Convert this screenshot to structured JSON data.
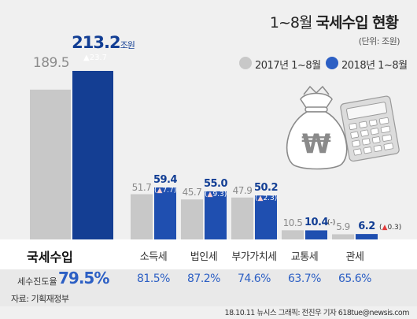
{
  "title_plain": "1~8월 ",
  "title_bold": "국세수입 현황",
  "unit": "(단위: 조원)",
  "legend": [
    {
      "label": "2017년 1~8월",
      "color": "#c8c8c8"
    },
    {
      "label": "2018년 1~8월",
      "color": "#2c5fc4"
    }
  ],
  "total": {
    "label": "국세수입",
    "v2017": "189.5",
    "v2018": "213.2",
    "v2018_unit": "조원",
    "delta": "▲23.7",
    "ratio_label": "세수진도율",
    "ratio": "79.5%"
  },
  "chart_data": {
    "type": "bar",
    "title": "1~8월 국세수입 현황",
    "unit": "조원",
    "categories": [
      "국세수입",
      "소득세",
      "법인세",
      "부가가치세",
      "교통세",
      "관세"
    ],
    "series": [
      {
        "name": "2017년 1~8월",
        "values": [
          189.5,
          51.7,
          45.7,
          47.9,
          10.5,
          5.9
        ]
      },
      {
        "name": "2018년 1~8월",
        "values": [
          213.2,
          59.4,
          55.0,
          50.2,
          10.4,
          6.2
        ]
      }
    ],
    "change": [
      "▲23.7",
      "▲7.7",
      "▲9.3",
      "▲2.3",
      "-",
      "▲0.3"
    ],
    "ratio": [
      "79.5%",
      "81.5%",
      "87.2%",
      "74.6%",
      "63.7%",
      "65.6%"
    ]
  },
  "taxes": [
    {
      "label": "소득세",
      "v2017": "51.7",
      "v2018": "59.4",
      "delta_sym": "▲",
      "delta_val": "7.7",
      "ratio": "81.5%"
    },
    {
      "label": "법인세",
      "v2017": "45.7",
      "v2018": "55.0",
      "delta_sym": "▲",
      "delta_val": "9.3",
      "ratio": "87.2%"
    },
    {
      "label": "부가가치세",
      "v2017": "47.9",
      "v2018": "50.2",
      "delta_sym": "▲",
      "delta_val": "2.3",
      "ratio": "74.6%"
    },
    {
      "label": "교통세",
      "v2017": "10.5",
      "v2018": "10.4",
      "delta_sym": "",
      "delta_val": "-",
      "ratio": "63.7%"
    },
    {
      "label": "관세",
      "v2017": "5.9",
      "v2018": "6.2",
      "delta_sym": "▲",
      "delta_val": "0.3",
      "ratio": "65.6%"
    }
  ],
  "source": "자료: 기획재정부",
  "credit": "18.10.11  뉴시스 그래픽: 전진우 기자 618tue@newsis.com",
  "colors": {
    "y2017": "#c8c8c8",
    "y2018": "#1f4fb0",
    "accent": "#2c5fc4",
    "up": "#e23b3b"
  }
}
